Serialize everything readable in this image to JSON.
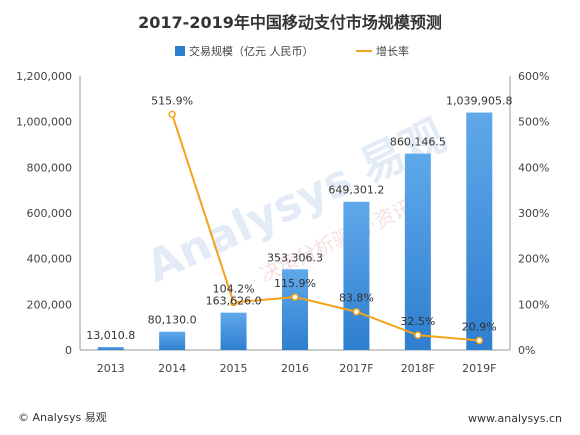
{
  "colors": {
    "bar": "#2f7fd0",
    "bar_light": "#5fa8ea",
    "line": "#f2a31b",
    "axis": "#9a9a9a",
    "watermark": "#dbe6f3"
  },
  "watermark": {
    "brand": "Analysys 易观",
    "slogan": "决策分析驱动·资讯"
  },
  "footer": {
    "copyright": "© Analysys 易观",
    "website": "www.analysys.cn"
  },
  "chart_data": {
    "type": "bar",
    "title": "2017-2019年中国移动支付市场规模预测",
    "categories": [
      "2013",
      "2014",
      "2015",
      "2016",
      "2017F",
      "2018F",
      "2019F"
    ],
    "series": [
      {
        "name": "交易规模（亿元 人民币）",
        "type": "bar",
        "axis": "left",
        "values": [
          13010.8,
          80130.0,
          163626.0,
          353306.3,
          649301.2,
          860146.5,
          1039905.8
        ],
        "labels": [
          "13,010.8",
          "80,130.0",
          "163,626.0",
          "353,306.3",
          "649,301.2",
          "860,146.5",
          "1,039,905.8"
        ]
      },
      {
        "name": "增长率",
        "type": "line",
        "axis": "right",
        "values": [
          null,
          515.9,
          104.2,
          115.9,
          83.8,
          32.5,
          20.9
        ],
        "labels": [
          "",
          "515.9%",
          "104.2%",
          "115.9%",
          "83.8%",
          "32.5%",
          "20.9%"
        ]
      }
    ],
    "y_left": {
      "min": 0,
      "max": 1200000,
      "ticks": [
        "0",
        "200,000",
        "400,000",
        "600,000",
        "800,000",
        "1,000,000",
        "1,200,000"
      ]
    },
    "y_right": {
      "min": 0,
      "max": 600,
      "ticks": [
        "0%",
        "100%",
        "200%",
        "300%",
        "400%",
        "500%",
        "600%"
      ]
    },
    "grid": false,
    "legend": "top-center"
  }
}
